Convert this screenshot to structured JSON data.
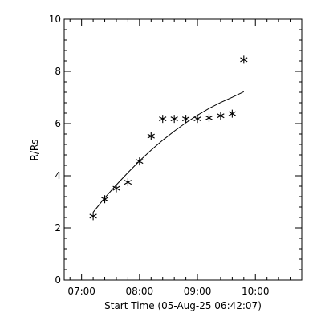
{
  "chart_data": {
    "type": "scatter",
    "title": "",
    "xlabel": "Start Time (05-Aug-25 06:42:07)",
    "ylabel": "R/Rs",
    "x_ticks": [
      "07:00",
      "08:00",
      "09:00",
      "10:00"
    ],
    "y_ticks": [
      "0",
      "2",
      "4",
      "6",
      "8",
      "10"
    ],
    "xlim": [
      "06:42",
      "10:48"
    ],
    "ylim": [
      0,
      10
    ],
    "grid": false,
    "marker": "asterisk",
    "points": [
      {
        "x": "07:12",
        "y": 2.45
      },
      {
        "x": "07:24",
        "y": 3.1
      },
      {
        "x": "07:36",
        "y": 3.52
      },
      {
        "x": "07:48",
        "y": 3.75
      },
      {
        "x": "08:00",
        "y": 4.55
      },
      {
        "x": "08:12",
        "y": 5.52
      },
      {
        "x": "08:24",
        "y": 6.18
      },
      {
        "x": "08:36",
        "y": 6.18
      },
      {
        "x": "08:48",
        "y": 6.18
      },
      {
        "x": "09:00",
        "y": 6.18
      },
      {
        "x": "09:12",
        "y": 6.22
      },
      {
        "x": "09:24",
        "y": 6.3
      },
      {
        "x": "09:36",
        "y": 6.38
      },
      {
        "x": "09:48",
        "y": 8.45
      }
    ],
    "fit_line": [
      {
        "x": "07:12",
        "y": 2.6
      },
      {
        "x": "07:24",
        "y": 3.15
      },
      {
        "x": "07:36",
        "y": 3.65
      },
      {
        "x": "07:48",
        "y": 4.12
      },
      {
        "x": "08:00",
        "y": 4.57
      },
      {
        "x": "08:12",
        "y": 4.98
      },
      {
        "x": "08:24",
        "y": 5.36
      },
      {
        "x": "08:36",
        "y": 5.71
      },
      {
        "x": "08:48",
        "y": 6.03
      },
      {
        "x": "09:00",
        "y": 6.32
      },
      {
        "x": "09:12",
        "y": 6.58
      },
      {
        "x": "09:24",
        "y": 6.81
      },
      {
        "x": "09:36",
        "y": 7.01
      },
      {
        "x": "09:48",
        "y": 7.22
      }
    ]
  }
}
